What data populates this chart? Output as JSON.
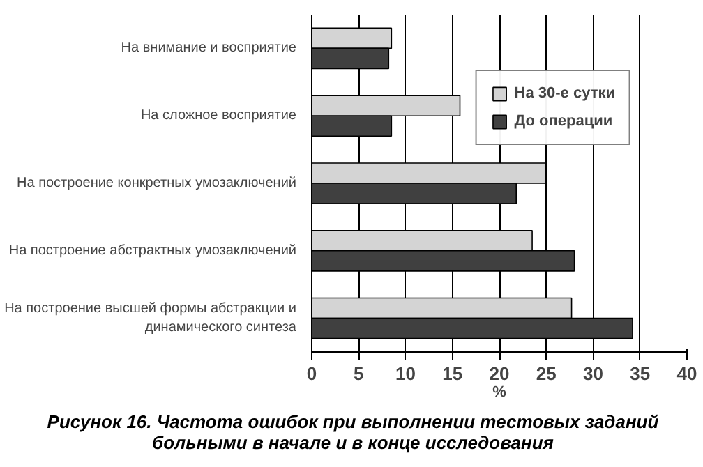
{
  "chart_data": {
    "type": "bar",
    "orientation": "horizontal",
    "title": "Рисунок 16. Частота ошибок при выполнении тестовых заданий больными в начале и в конце исследования",
    "xlabel": "%",
    "categories": [
      "На внимание и восприятие",
      "На сложное восприятие",
      "На построение конкретных умозаключений",
      "На построение абстрактных умозаключений",
      "На построение высшей формы абстракции и динамического синтеза"
    ],
    "series": [
      {
        "name": "На 30-е сутки",
        "color": "#d4d4d4",
        "values": [
          8.5,
          15.8,
          24.9,
          23.5,
          27.7
        ]
      },
      {
        "name": "До операции",
        "color": "#404040",
        "values": [
          8.2,
          8.5,
          21.8,
          28.0,
          34.2
        ]
      }
    ],
    "xlim": [
      0,
      40
    ],
    "xticks": [
      0,
      5,
      10,
      15,
      20,
      25,
      30,
      35,
      40
    ],
    "grid": "x",
    "legend": "top right"
  }
}
